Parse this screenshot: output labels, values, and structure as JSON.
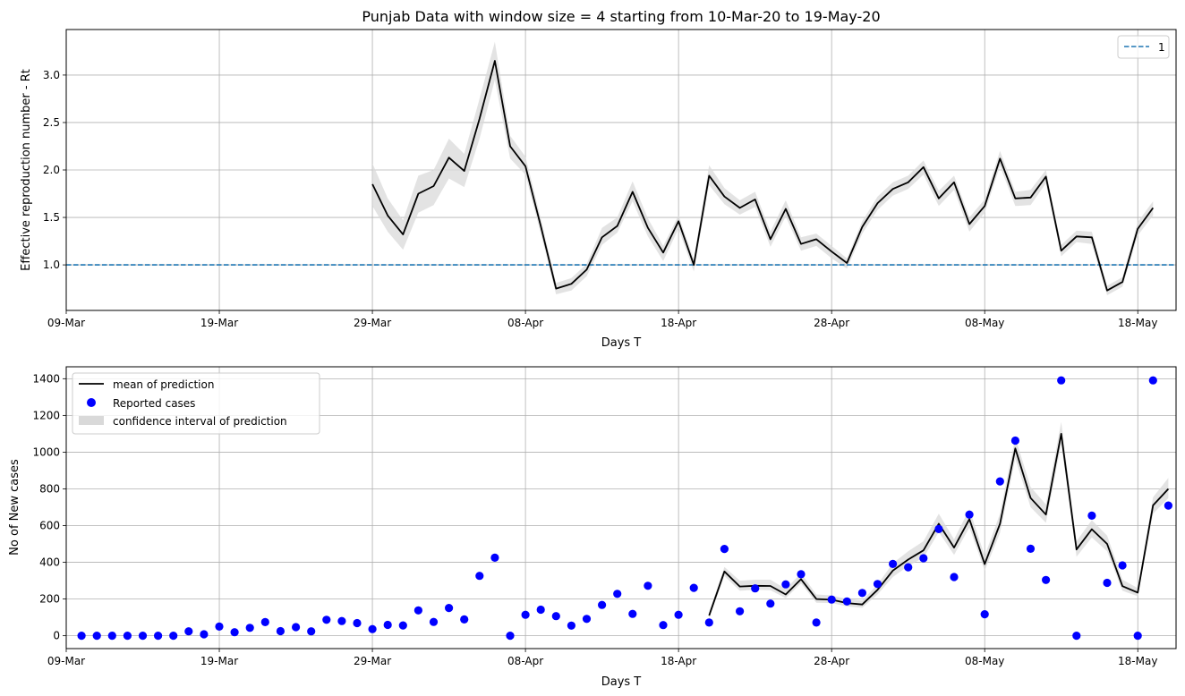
{
  "chart_data": [
    {
      "type": "line",
      "title": "Punjab Data with window size = 4 starting from 10-Mar-20 to 19-May-20",
      "xlabel": "Days T",
      "ylabel": "Effective reproduction number - Rt",
      "x_ticks": [
        "09-Mar",
        "19-Mar",
        "29-Mar",
        "08-Apr",
        "18-Apr",
        "28-Apr",
        "08-May",
        "18-May"
      ],
      "y_ticks": [
        "1.0",
        "1.5",
        "2.0",
        "2.5",
        "3.0"
      ],
      "xlim": [
        0,
        72.5
      ],
      "ylim": [
        0.52,
        3.48
      ],
      "grid": true,
      "legend_position": "top-right",
      "legend": [
        "1"
      ],
      "reference_line": {
        "y": 1.0,
        "label": "1",
        "style": "dashed",
        "color": "#1f77b4"
      },
      "series": [
        {
          "color": "#000000",
          "band_color": "#d9d9d9",
          "x_start": 20,
          "values": [
            1.85,
            1.52,
            1.32,
            1.75,
            1.83,
            2.13,
            1.99,
            2.54,
            3.15,
            2.25,
            2.04,
            1.41,
            0.75,
            0.8,
            0.95,
            1.29,
            1.41,
            1.77,
            1.39,
            1.13,
            1.46,
            1.0,
            1.94,
            1.72,
            1.6,
            1.69,
            1.27,
            1.59,
            1.22,
            1.27,
            1.14,
            1.02,
            1.4,
            1.65,
            1.8,
            1.87,
            2.03,
            1.7,
            1.87,
            1.43,
            1.62,
            2.12,
            1.7,
            1.71,
            1.93,
            1.15,
            1.3,
            1.29,
            0.73,
            0.82,
            1.38,
            1.6
          ],
          "upper": [
            2.07,
            1.7,
            1.47,
            1.94,
            2.0,
            2.33,
            2.17,
            2.75,
            3.35,
            2.36,
            2.14,
            1.49,
            0.81,
            0.86,
            1.01,
            1.39,
            1.5,
            1.88,
            1.49,
            1.2,
            1.52,
            1.06,
            2.05,
            1.81,
            1.68,
            1.77,
            1.35,
            1.68,
            1.29,
            1.33,
            1.2,
            1.07,
            1.46,
            1.72,
            1.87,
            1.94,
            2.1,
            1.78,
            1.94,
            1.5,
            1.69,
            2.2,
            1.77,
            1.79,
            2.0,
            1.21,
            1.36,
            1.35,
            0.78,
            0.87,
            1.45,
            1.67
          ],
          "lower": [
            1.62,
            1.35,
            1.16,
            1.55,
            1.63,
            1.91,
            1.82,
            2.33,
            2.95,
            2.12,
            1.95,
            1.33,
            0.69,
            0.73,
            0.88,
            1.21,
            1.34,
            1.67,
            1.3,
            1.04,
            1.38,
            0.93,
            1.84,
            1.64,
            1.53,
            1.61,
            1.19,
            1.51,
            1.15,
            1.2,
            1.07,
            0.96,
            1.33,
            1.58,
            1.73,
            1.8,
            1.95,
            1.62,
            1.79,
            1.35,
            1.55,
            2.04,
            1.62,
            1.63,
            1.86,
            1.09,
            1.24,
            1.22,
            0.68,
            0.77,
            1.31,
            1.52
          ]
        }
      ]
    },
    {
      "type": "line",
      "title": "",
      "xlabel": "Days T",
      "ylabel": "No of New cases",
      "x_ticks": [
        "09-Mar",
        "19-Mar",
        "29-Mar",
        "08-Apr",
        "18-Apr",
        "28-Apr",
        "08-May",
        "18-May"
      ],
      "y_ticks": [
        "0",
        "200",
        "400",
        "600",
        "800",
        "1000",
        "1200",
        "1400"
      ],
      "xlim": [
        0,
        72.5
      ],
      "ylim": [
        -70,
        1465
      ],
      "grid": true,
      "legend_position": "top-left",
      "legend": [
        "mean of prediction",
        "Reported cases",
        "confidence interval of prediction"
      ],
      "reported_cases": {
        "name": "Reported cases",
        "color": "#0000ff",
        "x_start": 1,
        "values": [
          0,
          0,
          0,
          0,
          0,
          0,
          0,
          24,
          8,
          50,
          19,
          43,
          74,
          25,
          47,
          24,
          87,
          80,
          69,
          36,
          59,
          56,
          138,
          75,
          151,
          89,
          326,
          425,
          0,
          114,
          142,
          107,
          55,
          92,
          168,
          228,
          119,
          272,
          58,
          114,
          261,
          72,
          473,
          133,
          258,
          175,
          280,
          335,
          72,
          197,
          187,
          233,
          282,
          391,
          373,
          422,
          581,
          320,
          660,
          117,
          841,
          1063,
          474,
          304,
          1391,
          0,
          654,
          288,
          383,
          0,
          1391,
          709
        ]
      },
      "series": [
        {
          "name": "mean of prediction",
          "color": "#000000",
          "band_color": "#d9d9d9",
          "x_start": 42,
          "values": [
            110,
            350,
            268,
            272,
            271,
            225,
            308,
            200,
            196,
            178,
            170,
            250,
            355,
            415,
            465,
            610,
            480,
            635,
            390,
            610,
            1020,
            750,
            660,
            1100,
            470,
            580,
            500,
            270,
            235,
            710,
            800
          ],
          "upper": [
            130,
            375,
            300,
            305,
            305,
            255,
            340,
            225,
            220,
            200,
            192,
            280,
            395,
            460,
            515,
            665,
            525,
            690,
            435,
            665,
            1080,
            810,
            715,
            1165,
            515,
            630,
            545,
            305,
            260,
            755,
            860
          ],
          "lower": [
            95,
            325,
            245,
            250,
            248,
            205,
            285,
            180,
            178,
            160,
            152,
            225,
            320,
            380,
            425,
            565,
            440,
            590,
            355,
            560,
            965,
            700,
            615,
            1045,
            430,
            535,
            460,
            245,
            215,
            665,
            750
          ]
        }
      ]
    }
  ]
}
